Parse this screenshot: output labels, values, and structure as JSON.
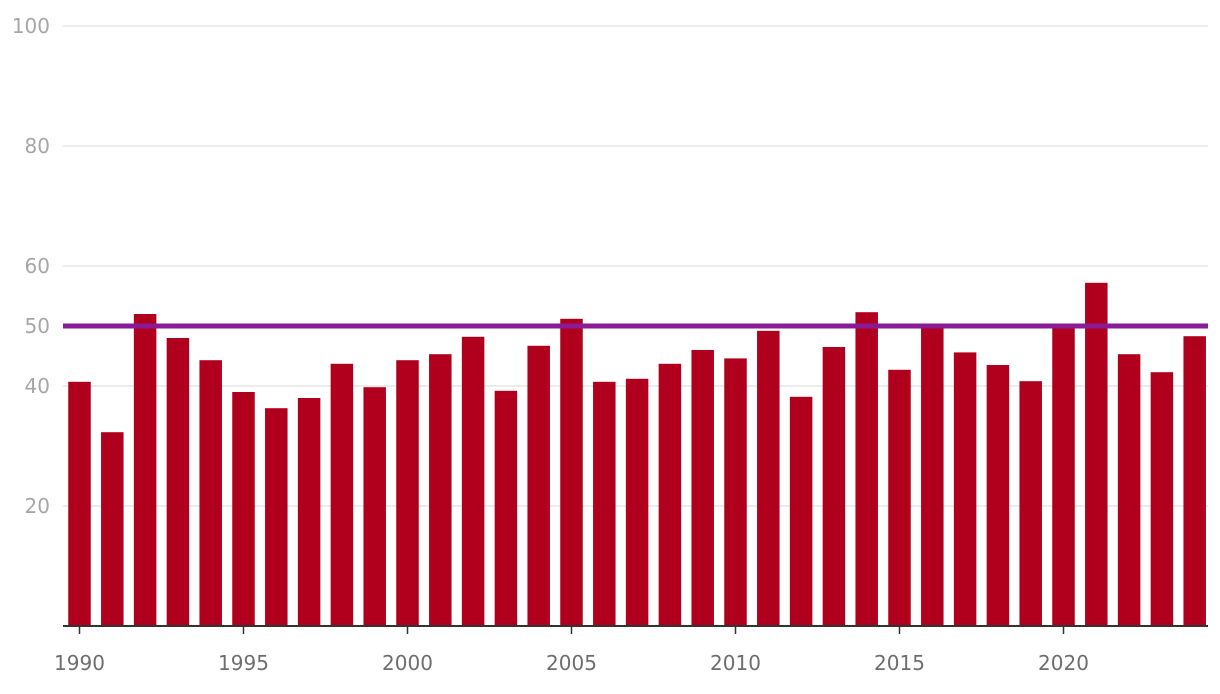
{
  "chart_data": {
    "type": "bar",
    "x": [
      1990,
      1991,
      1992,
      1993,
      1994,
      1995,
      1996,
      1997,
      1998,
      1999,
      2000,
      2001,
      2002,
      2003,
      2004,
      2005,
      2006,
      2007,
      2008,
      2009,
      2010,
      2011,
      2012,
      2013,
      2014,
      2015,
      2016,
      2017,
      2018,
      2019,
      2020,
      2021,
      2022,
      2023,
      2024
    ],
    "values": [
      40.7,
      32.3,
      52.0,
      48.0,
      44.3,
      39.0,
      36.3,
      38.0,
      43.7,
      39.8,
      44.3,
      45.3,
      48.2,
      39.2,
      46.7,
      51.2,
      40.7,
      41.2,
      43.7,
      46.0,
      44.6,
      49.2,
      38.2,
      46.5,
      52.3,
      42.7,
      49.6,
      45.6,
      43.5,
      40.8,
      49.9,
      57.2,
      45.3,
      42.3,
      48.3
    ],
    "reference_line": {
      "value": 50,
      "color": "#8b1a96"
    },
    "bar_color": "#b0001e",
    "ylim": [
      0,
      100
    ],
    "yticks": [
      20,
      40,
      50,
      60,
      80,
      100
    ],
    "xticks": [
      1990,
      1995,
      2000,
      2005,
      2010,
      2015,
      2020
    ],
    "grid": true,
    "title": "",
    "xlabel": "",
    "ylabel": ""
  }
}
